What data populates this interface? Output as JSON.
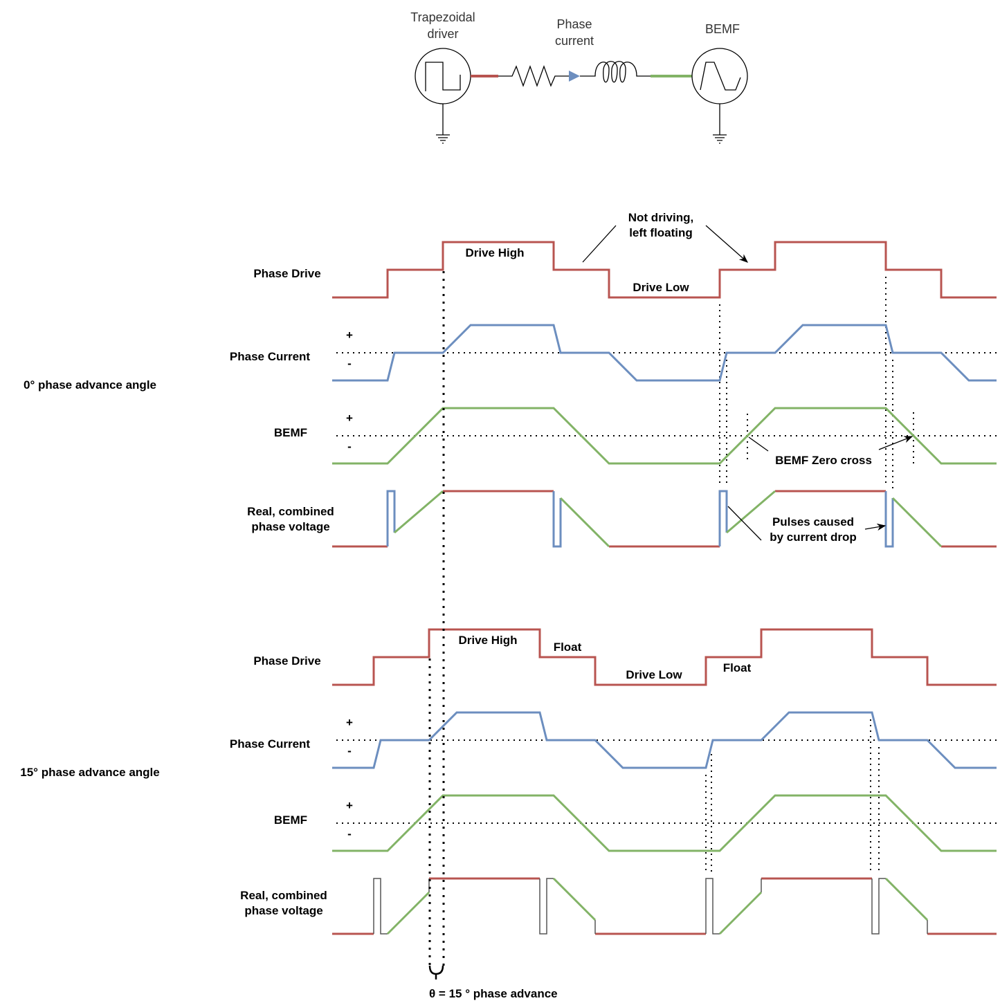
{
  "circuit": {
    "driver_label": [
      "Trapezoidal",
      "driver"
    ],
    "current_label": [
      "Phase",
      "current"
    ],
    "bemf_label": "BEMF"
  },
  "section_0": {
    "title": "0° phase advance angle",
    "row_labels": {
      "phase_drive": "Phase Drive",
      "phase_current": "Phase Current",
      "bemf": "BEMF",
      "voltage": [
        "Real, combined",
        "phase voltage"
      ]
    },
    "plus": "+",
    "minus": "-",
    "annotations": {
      "drive_high": "Drive High",
      "drive_low": "Drive Low",
      "not_driving": [
        "Not driving,",
        "left floating"
      ],
      "zero_cross": "BEMF Zero cross",
      "pulses": [
        "Pulses caused",
        "by current drop"
      ]
    }
  },
  "section_15": {
    "title": "15° phase advance angle",
    "row_labels": {
      "phase_drive": "Phase Drive",
      "phase_current": "Phase Current",
      "bemf": "BEMF",
      "voltage": [
        "Real, combined",
        "phase voltage"
      ]
    },
    "plus": "+",
    "minus": "-",
    "annotations": {
      "drive_high": "Drive High",
      "drive_low": "Drive Low",
      "float1": "Float",
      "float2": "Float"
    },
    "phase_advance_label": "θ = 15 ° phase advance"
  },
  "colors": {
    "drive": "#b85450",
    "current": "#6c8ebf",
    "bemf": "#82b366"
  }
}
